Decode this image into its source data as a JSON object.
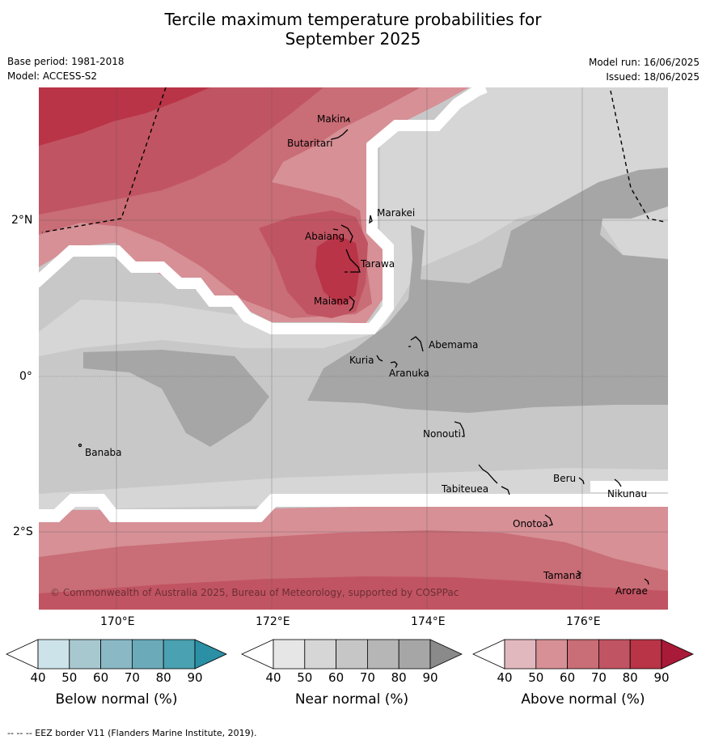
{
  "title_line1": "Tercile maximum temperature probabilities for",
  "title_line2": "September 2025",
  "base_period": "Base period: 1981-2018",
  "model": "Model: ACCESS-S2",
  "model_run": "Model run: 16/06/2025",
  "issued": "Issued: 18/06/2025",
  "copyright": "© Commonwealth of Australia 2025, Bureau of Meteorology, supported by COSPPac",
  "lon_labels": [
    "170°E",
    "172°E",
    "174°E",
    "176°E"
  ],
  "lat_labels": [
    "2°N",
    "0°",
    "2°S"
  ],
  "places": [
    "Makin",
    "Butaritari",
    "Marakei",
    "Abaiang",
    "Tarawa",
    "Maiana",
    "Abemama",
    "Kuria",
    "Aranuka",
    "Banaba",
    "Nonouti",
    "Tabiteuea",
    "Beru",
    "Nikunau",
    "Onotoa",
    "Tamana",
    "Arorae"
  ],
  "colorbars": [
    {
      "label": "Below normal (%)",
      "ticks": [
        "40",
        "50",
        "60",
        "70",
        "80",
        "90"
      ],
      "colors": [
        "#ffffff",
        "#cde3ea",
        "#a8c8d0",
        "#8ab9c5",
        "#6aaab9",
        "#4aa1b1",
        "#2b8fa5"
      ]
    },
    {
      "label": "Near normal (%)",
      "ticks": [
        "40",
        "50",
        "60",
        "70",
        "80",
        "90"
      ],
      "colors": [
        "#ffffff",
        "#e6e6e6",
        "#d6d6d6",
        "#c6c6c6",
        "#b6b6b6",
        "#a6a6a6",
        "#8a8a8a"
      ]
    },
    {
      "label": "Above normal (%)",
      "ticks": [
        "40",
        "50",
        "60",
        "70",
        "80",
        "90"
      ],
      "colors": [
        "#ffffff",
        "#e2b8bf",
        "#d69096",
        "#c96d76",
        "#c15462",
        "#b93447",
        "#a81a37"
      ]
    }
  ],
  "footnote": "--  --  -- EEZ border V11 (Flanders Marine Institute, 2019)."
}
